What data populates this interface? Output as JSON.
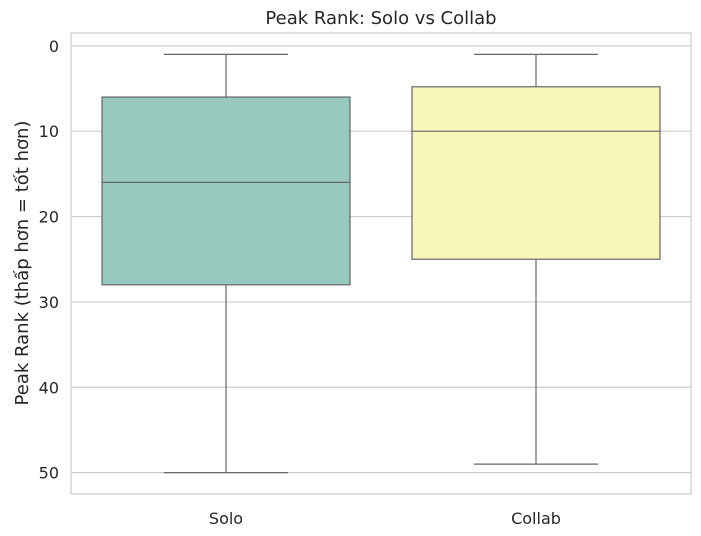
{
  "chart_data": {
    "type": "box",
    "title": "Peak Rank: Solo vs Collab",
    "xlabel": "",
    "ylabel": "Peak Rank (thấp hơn = tốt hơn)",
    "ylim": [
      52.5,
      -1.5
    ],
    "y_inverted": true,
    "yticks": [
      0,
      10,
      20,
      30,
      40,
      50
    ],
    "grid": true,
    "categories": [
      "Solo",
      "Collab"
    ],
    "boxes": [
      {
        "category": "Solo",
        "min": 1,
        "q1": 6,
        "median": 16,
        "q3": 28,
        "max": 50,
        "color": "#97c9bf"
      },
      {
        "category": "Collab",
        "min": 1,
        "q1": 4.8,
        "median": 10,
        "q3": 25,
        "max": 49,
        "color": "#f7f6b9"
      }
    ]
  }
}
